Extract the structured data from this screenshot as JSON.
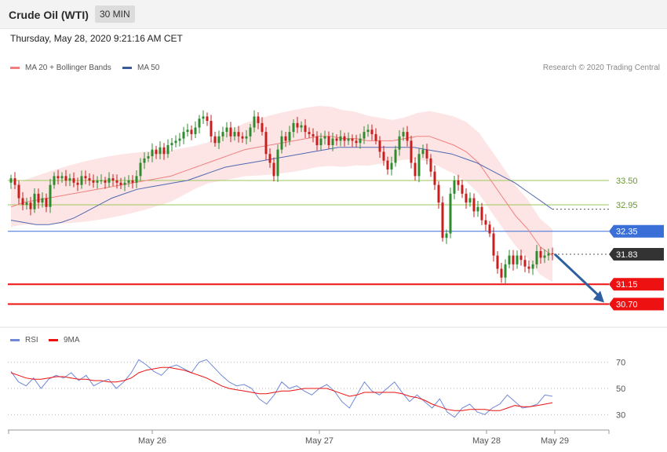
{
  "header": {
    "title": "Crude Oil (WTI)",
    "timeframe": "30 MIN"
  },
  "timestamp": "Thursday, May 28, 2020 9:21:16 AM CET",
  "legend": {
    "ma20": "MA 20 + Bollinger Bands",
    "ma50": "MA 50",
    "rsi": "RSI",
    "ma9": "9MA",
    "credit": "Research © 2020 Trading Central"
  },
  "colors": {
    "ma20": "#f08080",
    "band": "#fde0e0",
    "ma50": "#5068b0",
    "pivot": "#3a6fd8",
    "support": "#ee1111",
    "resistance": "#9cc65a",
    "up": "#2e8b2e",
    "down": "#c81e1e",
    "last": "#333333",
    "arrow": "#2f5f9f",
    "rsi": "#7088d8",
    "rsima": "#ee1111"
  },
  "chart_data": [
    {
      "type": "candlestick",
      "title": "Crude Oil (WTI)",
      "interval": "30 MIN",
      "xlabels": [
        "May 26",
        "May 27",
        "May 28",
        "May 29"
      ],
      "ylim": [
        30.3,
        35.9
      ],
      "closes": [
        33.55,
        33.4,
        33.1,
        32.95,
        33.0,
        32.85,
        33.2,
        33.0,
        33.1,
        32.9,
        33.4,
        33.6,
        33.55,
        33.6,
        33.5,
        33.55,
        33.45,
        33.4,
        33.6,
        33.55,
        33.5,
        33.45,
        33.5,
        33.5,
        33.45,
        33.55,
        33.5,
        33.45,
        33.4,
        33.45,
        33.5,
        33.45,
        33.6,
        33.9,
        34.0,
        34.05,
        34.2,
        34.1,
        34.25,
        34.1,
        34.3,
        34.35,
        34.4,
        34.45,
        34.6,
        34.65,
        34.55,
        34.7,
        34.9,
        34.95,
        34.85,
        34.5,
        34.35,
        34.5,
        34.6,
        34.7,
        34.5,
        34.6,
        34.5,
        34.45,
        34.5,
        34.7,
        34.95,
        34.8,
        34.6,
        34.1,
        33.9,
        33.6,
        34.2,
        34.5,
        34.4,
        34.6,
        34.8,
        34.7,
        34.75,
        34.6,
        34.55,
        34.5,
        34.3,
        34.45,
        34.5,
        34.3,
        34.45,
        34.4,
        34.5,
        34.4,
        34.45,
        34.4,
        34.35,
        34.45,
        34.6,
        34.65,
        34.55,
        34.4,
        34.15,
        33.95,
        33.75,
        33.9,
        34.2,
        34.5,
        34.6,
        34.4,
        33.9,
        33.6,
        34.1,
        34.2,
        34.0,
        33.7,
        33.4,
        33.0,
        32.2,
        32.3,
        33.2,
        33.5,
        33.4,
        33.2,
        33.0,
        33.1,
        32.8,
        32.9,
        32.6,
        32.5,
        32.3,
        31.8,
        31.5,
        31.3,
        31.6,
        31.8,
        31.6,
        31.8,
        31.7,
        31.55,
        31.5,
        31.6,
        31.9,
        31.75,
        31.8,
        31.85,
        31.83
      ],
      "series": [
        {
          "name": "MA 20",
          "values": [
            32.9,
            33.0,
            33.05,
            33.1,
            33.15,
            33.2,
            33.25,
            33.3,
            33.35,
            33.4,
            33.45,
            33.5,
            33.55,
            33.6,
            33.7,
            33.8,
            33.9,
            34.0,
            34.1,
            34.2,
            34.25,
            34.3,
            34.35,
            34.4,
            34.45,
            34.5,
            34.5,
            34.45,
            34.45,
            34.4,
            34.4,
            34.4,
            34.45,
            34.5,
            34.5,
            34.4,
            34.3,
            34.15,
            33.9,
            33.5,
            33.1,
            32.7,
            32.4,
            32.0,
            31.8
          ]
        },
        {
          "name": "MA 50",
          "values": [
            32.6,
            32.55,
            32.5,
            32.5,
            32.55,
            32.65,
            32.8,
            32.95,
            33.1,
            33.2,
            33.3,
            33.35,
            33.4,
            33.45,
            33.5,
            33.6,
            33.7,
            33.8,
            33.85,
            33.9,
            33.95,
            34.0,
            34.05,
            34.1,
            34.15,
            34.2,
            34.25,
            34.25,
            34.25,
            34.25,
            34.25,
            34.25,
            34.25,
            34.2,
            34.15,
            34.1,
            34.0,
            33.9,
            33.75,
            33.6,
            33.45,
            33.25,
            33.05,
            32.85
          ]
        }
      ],
      "levels": [
        {
          "label": "33.50",
          "value": 33.5,
          "kind": "resistance"
        },
        {
          "label": "32.95",
          "value": 32.95,
          "kind": "resistance"
        },
        {
          "label": "32.35",
          "value": 32.35,
          "kind": "pivot"
        },
        {
          "label": "31.83",
          "value": 31.83,
          "kind": "last"
        },
        {
          "label": "31.15",
          "value": 31.15,
          "kind": "support"
        },
        {
          "label": "30.70",
          "value": 30.7,
          "kind": "support"
        }
      ],
      "annotation": "Arrow pointing down from current price toward 30.70"
    },
    {
      "type": "line",
      "title": "RSI",
      "ylim": [
        20,
        80
      ],
      "yticks": [
        "70",
        "50",
        "30"
      ],
      "series": [
        {
          "name": "RSI",
          "values": [
            63,
            55,
            52,
            58,
            50,
            57,
            60,
            58,
            62,
            56,
            60,
            52,
            55,
            57,
            50,
            55,
            62,
            72,
            68,
            63,
            60,
            66,
            68,
            65,
            62,
            70,
            72,
            66,
            60,
            55,
            52,
            53,
            50,
            42,
            38,
            45,
            55,
            50,
            52,
            48,
            45,
            50,
            53,
            48,
            40,
            35,
            45,
            55,
            48,
            45,
            50,
            55,
            47,
            40,
            45,
            40,
            35,
            42,
            32,
            28,
            35,
            38,
            32,
            30,
            35,
            38,
            45,
            40,
            35,
            36,
            38,
            45,
            44
          ]
        },
        {
          "name": "9MA",
          "values": [
            62,
            60,
            58,
            57,
            57,
            58,
            59,
            59,
            58,
            57,
            57,
            56,
            56,
            55,
            55,
            56,
            58,
            62,
            64,
            65,
            66,
            66,
            65,
            64,
            62,
            60,
            58,
            55,
            52,
            50,
            49,
            48,
            47,
            46,
            46,
            47,
            48,
            48,
            49,
            50,
            50,
            50,
            50,
            48,
            46,
            44,
            45,
            47,
            47,
            47,
            47,
            47,
            46,
            44,
            43,
            41,
            38,
            36,
            34,
            33,
            33,
            34,
            34,
            34,
            33,
            33,
            35,
            37,
            36,
            36,
            37,
            38,
            39
          ]
        }
      ]
    }
  ]
}
